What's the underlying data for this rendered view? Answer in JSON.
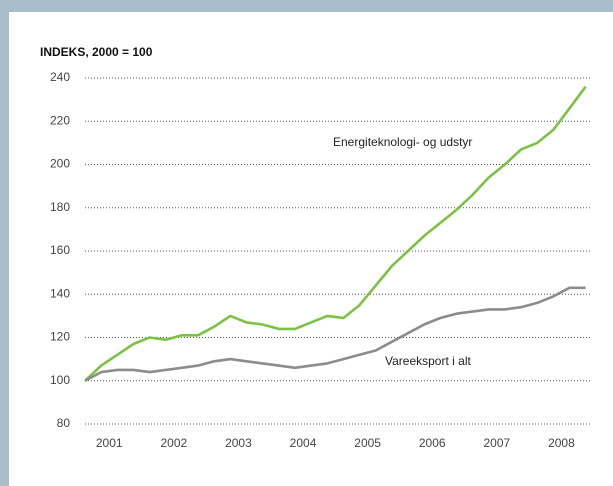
{
  "chart_data": {
    "type": "line",
    "title": "INDEKS, 2000 = 100",
    "categories": [
      null,
      "2001",
      null,
      null,
      null,
      "2002",
      null,
      null,
      null,
      "2003",
      null,
      null,
      null,
      "2004",
      null,
      null,
      null,
      "2005",
      null,
      null,
      null,
      "2006",
      null,
      null,
      null,
      "2007",
      null,
      null,
      null,
      "2008",
      null,
      null
    ],
    "series": [
      {
        "name": "Energiteknologi- og udstyr",
        "color": "#7cc242",
        "values": [
          100,
          107,
          112,
          117,
          120,
          119,
          121,
          121,
          125,
          130,
          127,
          126,
          124,
          124,
          127,
          130,
          129,
          135,
          144,
          153,
          160,
          167,
          173,
          179,
          186,
          194,
          200,
          207,
          210,
          216,
          226,
          236
        ]
      },
      {
        "name": "Vareeksport i alt",
        "color": "#8c8c8c",
        "values": [
          100,
          104,
          105,
          105,
          104,
          105,
          106,
          107,
          109,
          110,
          109,
          108,
          107,
          106,
          107,
          108,
          110,
          112,
          114,
          118,
          122,
          126,
          129,
          131,
          132,
          133,
          133,
          134,
          136,
          139,
          143,
          143
        ]
      }
    ],
    "ylim": [
      80,
      240
    ],
    "yticks": [
      80,
      100,
      120,
      140,
      160,
      180,
      200,
      220,
      240
    ],
    "grid": true
  }
}
